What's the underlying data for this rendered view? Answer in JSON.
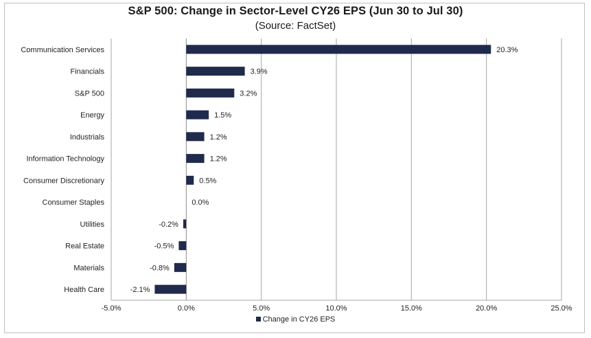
{
  "chart_data": {
    "type": "bar",
    "orientation": "horizontal",
    "title": "S&P 500: Change in Sector-Level CY26 EPS (Jun 30 to Jul 30)",
    "subtitle": "(Source: FactSet)",
    "categories": [
      "Communication Services",
      "Financials",
      "S&P 500",
      "Energy",
      "Industrials",
      "Information Technology",
      "Consumer Discretionary",
      "Consumer Staples",
      "Utilities",
      "Real Estate",
      "Materials",
      "Health Care"
    ],
    "series": [
      {
        "name": "Change in CY26 EPS",
        "values": [
          20.3,
          3.9,
          3.2,
          1.5,
          1.2,
          1.2,
          0.5,
          0.0,
          -0.2,
          -0.5,
          -0.8,
          -2.1
        ],
        "labels": [
          "20.3%",
          "3.9%",
          "3.2%",
          "1.5%",
          "1.2%",
          "1.2%",
          "0.5%",
          "0.0%",
          "-0.2%",
          "-0.5%",
          "-0.8%",
          "-2.1%"
        ]
      }
    ],
    "xlim": [
      -5,
      25
    ],
    "xticks": [
      "-5.0%",
      "0.0%",
      "5.0%",
      "10.0%",
      "15.0%",
      "20.0%",
      "25.0%"
    ],
    "grid": "vertical",
    "legend_position": "bottom",
    "bar_color": "#1f2a4d"
  }
}
